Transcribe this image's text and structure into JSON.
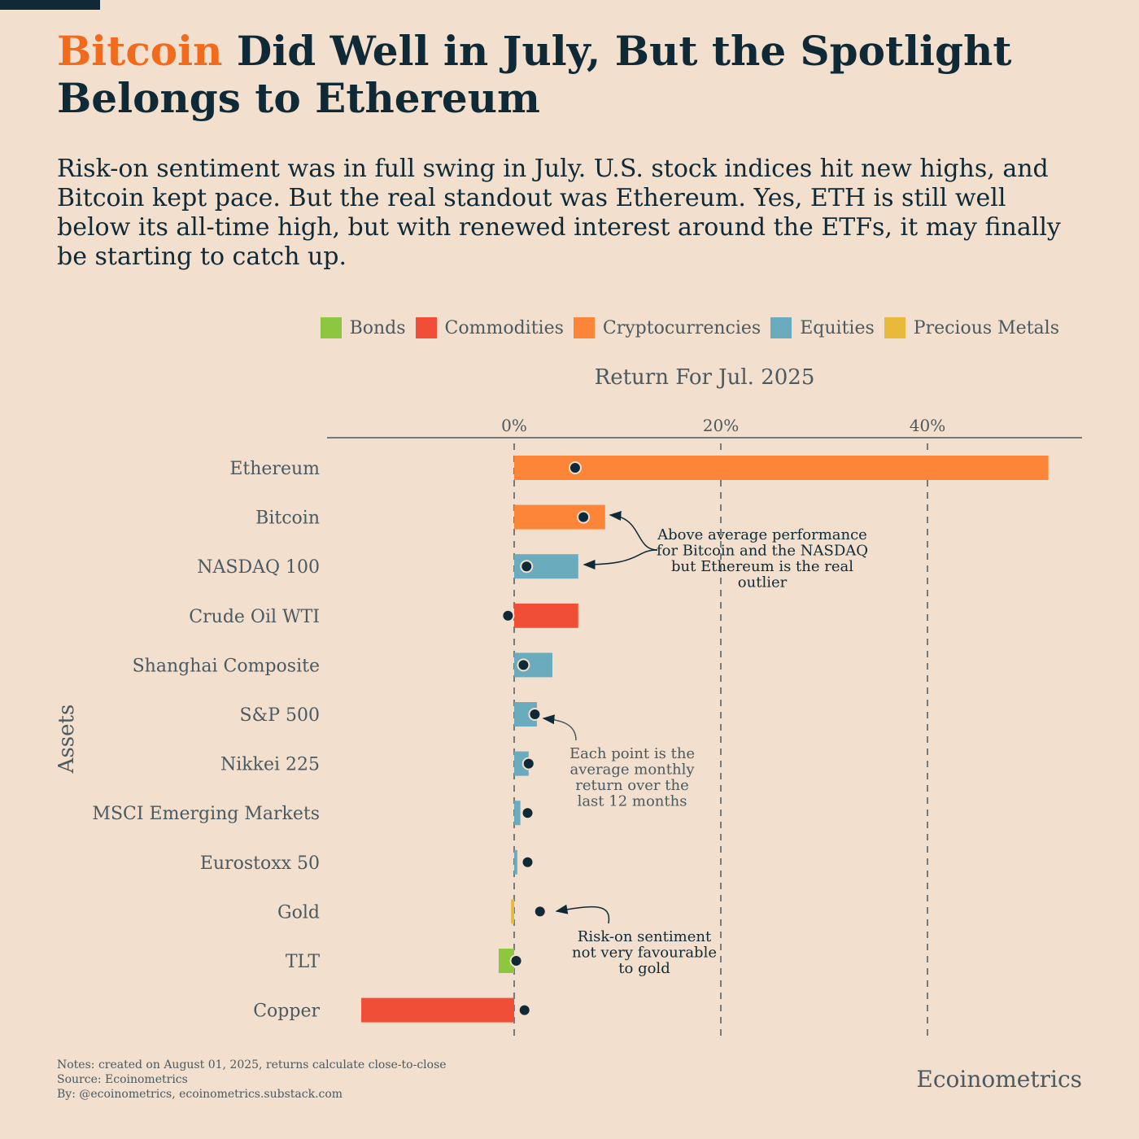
{
  "header": {
    "title_highlight": "Bitcoin",
    "title_rest": " Did Well in July, But the Spotlight Belongs to Ethereum",
    "subtitle": "Risk-on sentiment was in full swing in July. U.S. stock indices hit new highs, and Bitcoin kept pace. But the real standout was Ethereum. Yes, ETH is still well below its all-time high, but with renewed interest around the ETFs, it may finally be starting to catch up."
  },
  "colors": {
    "accent": "#f26b1d",
    "text": "#0f2a36",
    "background": "#f2dfce"
  },
  "legend": [
    {
      "label": "Bonds",
      "color": "#8dc63f"
    },
    {
      "label": "Commodities",
      "color": "#f04e37"
    },
    {
      "label": "Cryptocurrencies",
      "color": "#fd8538"
    },
    {
      "label": "Equities",
      "color": "#6aabbd"
    },
    {
      "label": "Precious Metals",
      "color": "#e8b93a"
    }
  ],
  "chart_data": {
    "type": "bar",
    "orientation": "horizontal",
    "title": "Return For Jul. 2025",
    "ylabel": "Assets",
    "xlim": [
      -18,
      55
    ],
    "xticks": [
      {
        "value": 0,
        "label": "0%"
      },
      {
        "value": 20,
        "label": "20%"
      },
      {
        "value": 40,
        "label": "40%"
      }
    ],
    "grid": "vertical dashed",
    "legend_position": "top-right",
    "categories": [
      "Ethereum",
      "Bitcoin",
      "NASDAQ 100",
      "Crude Oil WTI",
      "Shanghai Composite",
      "S&P 500",
      "Nikkei 225",
      "MSCI Emerging Markets",
      "Eurostoxx 50",
      "Gold",
      "TLT",
      "Copper"
    ],
    "groups": [
      "Cryptocurrencies",
      "Cryptocurrencies",
      "Equities",
      "Commodities",
      "Equities",
      "Equities",
      "Equities",
      "Equities",
      "Equities",
      "Precious Metals",
      "Bonds",
      "Commodities"
    ],
    "series": [
      {
        "name": "Return For Jul. 2025",
        "mark": "bar",
        "values": [
          51.7,
          8.8,
          6.2,
          6.2,
          3.7,
          2.2,
          1.4,
          0.6,
          0.3,
          -0.3,
          -1.5,
          -14.8
        ]
      },
      {
        "name": "Average monthly return over the last 12 months",
        "mark": "point",
        "values": [
          5.9,
          6.7,
          1.2,
          -0.6,
          0.9,
          2.0,
          1.4,
          1.3,
          1.3,
          2.5,
          0.2,
          1.0
        ]
      }
    ],
    "annotations": [
      "Above average performance for Bitcoin and the NASDAQ but Ethereum is the real outlier",
      "Each point is the average monthly return over the last 12 months",
      "Risk-on sentiment not very favourable to gold"
    ]
  },
  "footer": {
    "notes": "Notes: created on August 01, 2025, returns calculate close-to-close",
    "source": "Source: Ecoinometrics",
    "by": "By: @ecoinometrics, ecoinometrics.substack.com",
    "brand": "Ecoinometrics"
  }
}
